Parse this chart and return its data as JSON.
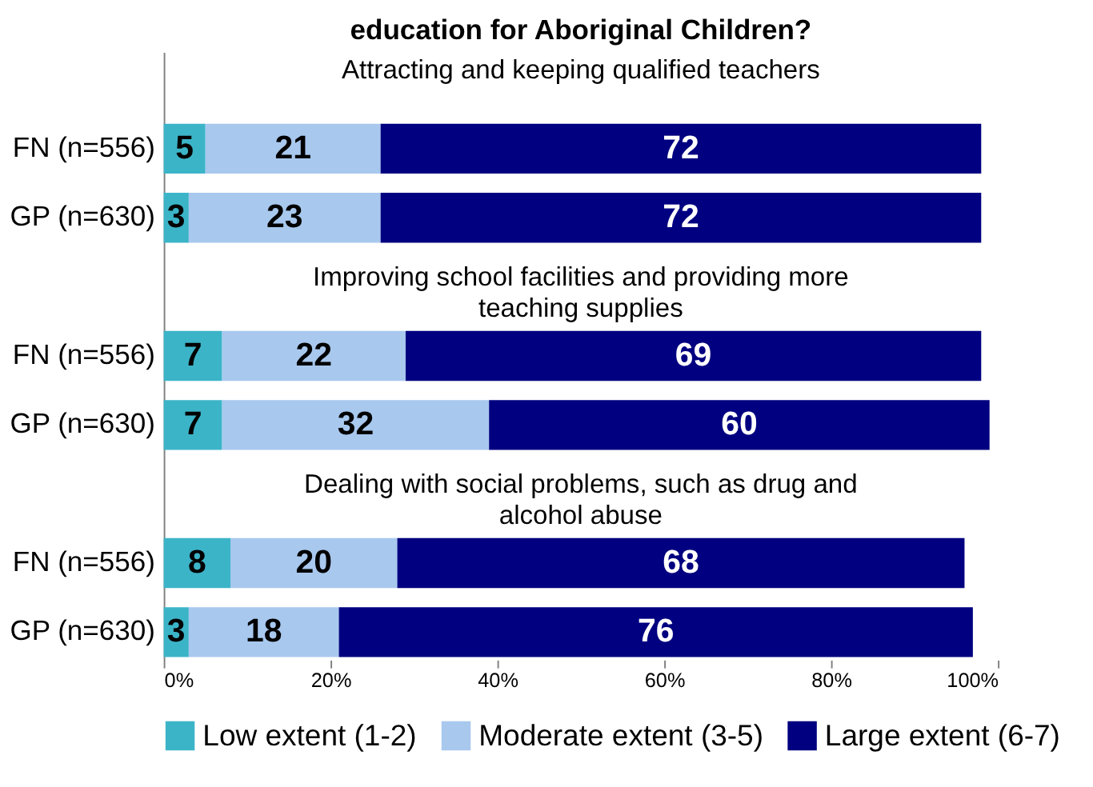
{
  "chart_data": {
    "type": "bar",
    "orientation": "horizontal",
    "stacked": true,
    "title": "education for Aboriginal Children?",
    "categories": [
      "FN (n=556)",
      "GP (n=630)",
      "FN (n=556)",
      "GP (n=630)",
      "FN (n=556)",
      "GP (n=630)"
    ],
    "series": [
      {
        "name": "Low extent (1-2)",
        "color": "#3cb4c8",
        "values": [
          5,
          3,
          7,
          7,
          8,
          3
        ]
      },
      {
        "name": "Moderate extent (3-5)",
        "color": "#a8c8ee",
        "values": [
          21,
          23,
          22,
          32,
          20,
          18
        ]
      },
      {
        "name": "Large extent (6-7)",
        "color": "#000080",
        "values": [
          72,
          72,
          69,
          60,
          68,
          76
        ]
      }
    ],
    "annotations": [
      "Attracting and keeping qualified teachers",
      "Improving school facilities and providing more teaching supplies",
      "Dealing with social problems, such as drug and alcohol abuse"
    ],
    "xlim": [
      0,
      100
    ],
    "xticks": [
      {
        "value": 0,
        "label": "0%"
      },
      {
        "value": 20,
        "label": "20%"
      },
      {
        "value": 40,
        "label": "40%"
      },
      {
        "value": 60,
        "label": "60%"
      },
      {
        "value": 80,
        "label": "80%"
      },
      {
        "value": 100,
        "label": "100%"
      }
    ],
    "data_labels": true,
    "legend": "bottom",
    "grid": false
  }
}
